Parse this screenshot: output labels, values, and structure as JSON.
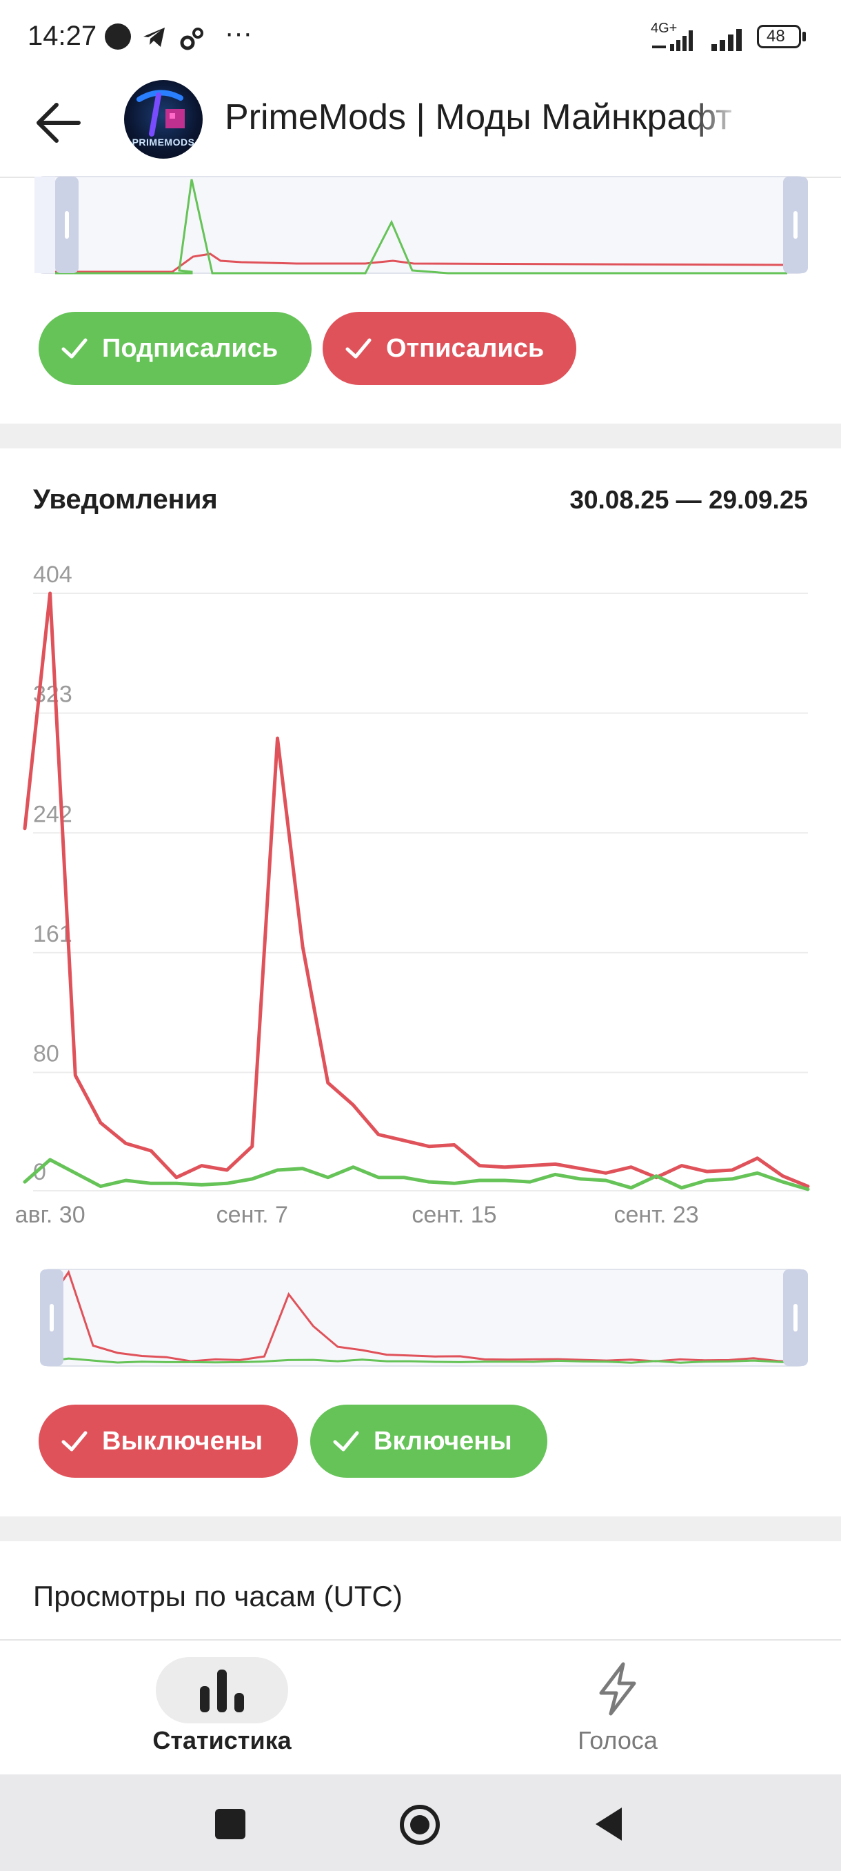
{
  "status_bar": {
    "time": "14:27",
    "network": "4G+",
    "battery": "48",
    "more": "···"
  },
  "header": {
    "channel_title": "PrimeMods | Моды Майнкрафт",
    "avatar_text": "PRIMEMODS",
    "icons": [
      "arrow-left-icon",
      "channel-avatar"
    ]
  },
  "subscribers_card": {
    "chips": [
      {
        "label": "Подписались",
        "color": "#65c357",
        "checked": true
      },
      {
        "label": "Отписались",
        "color": "#e0525a",
        "checked": true
      }
    ]
  },
  "notifications_card": {
    "title": "Уведомления",
    "date_range": "30.08.25 — 29.09.25",
    "chips": [
      {
        "label": "Выключены",
        "color": "#e0525a",
        "checked": true
      },
      {
        "label": "Включены",
        "color": "#65c357",
        "checked": true
      }
    ]
  },
  "hourly_views": {
    "title": "Просмотры по часам (UTC)"
  },
  "bottom_nav": {
    "items": [
      {
        "label": "Статистика",
        "icon": "bar-chart-icon",
        "active": true
      },
      {
        "label": "Голоса",
        "icon": "lightning-icon",
        "active": false
      }
    ]
  },
  "colors": {
    "green": "#65c357",
    "red": "#e0525a",
    "grid": "#ececec"
  },
  "chart_data": [
    {
      "type": "line",
      "title": "Уведомления",
      "subtitle": "30.08.25 — 29.09.25",
      "x": [
        "29.08",
        "30.08",
        "31.08",
        "01.09",
        "02.09",
        "03.09",
        "04.09",
        "05.09",
        "06.09",
        "07.09",
        "08.09",
        "09.09",
        "10.09",
        "11.09",
        "12.09",
        "13.09",
        "14.09",
        "15.09",
        "16.09",
        "17.09",
        "18.09",
        "19.09",
        "20.09",
        "21.09",
        "22.09",
        "23.09",
        "24.09",
        "25.09",
        "26.09",
        "27.09",
        "28.09",
        "29.09"
      ],
      "x_tick_labels": [
        "авг. 30",
        "сент. 7",
        "сент. 15",
        "сент. 23"
      ],
      "y_ticks": [
        0,
        80,
        161,
        242,
        323,
        404
      ],
      "ylim": [
        0,
        404
      ],
      "grid": true,
      "series": [
        {
          "name": "Выключены",
          "color": "#e0525a",
          "values": [
            245,
            404,
            78,
            46,
            32,
            27,
            9,
            17,
            14,
            30,
            306,
            165,
            73,
            58,
            38,
            34,
            30,
            31,
            17,
            16,
            17,
            18,
            15,
            12,
            16,
            9,
            17,
            13,
            14,
            22,
            10,
            3
          ]
        },
        {
          "name": "Включены",
          "color": "#65c357",
          "values": [
            6,
            21,
            12,
            3,
            7,
            5,
            5,
            4,
            5,
            8,
            14,
            15,
            9,
            16,
            9,
            9,
            6,
            5,
            7,
            7,
            6,
            11,
            8,
            7,
            2,
            10,
            2,
            7,
            8,
            12,
            6,
            1
          ]
        }
      ]
    }
  ]
}
